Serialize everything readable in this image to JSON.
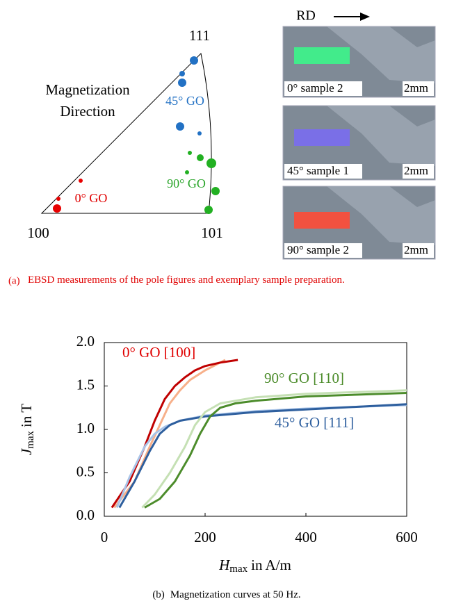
{
  "figure_a": {
    "triangle_labels": {
      "top": "111",
      "left": "100",
      "right": "101"
    },
    "direction_title": [
      "Magnetization",
      "Direction"
    ],
    "group_labels": {
      "deg45": "45° GO",
      "deg90": "90° GO",
      "deg0": "0° GO"
    },
    "rd_label": "RD",
    "panels": [
      {
        "label": "0° sample 2",
        "scale": "2mm"
      },
      {
        "label": "45° sample 1",
        "scale": "2mm"
      },
      {
        "label": "90° sample 2",
        "scale": "2mm"
      }
    ],
    "caption": {
      "label": "(a)",
      "text": "EBSD measurements of the pole figures and exemplary sample preparation."
    }
  },
  "chart_data": {
    "type": "line",
    "y_label": {
      "symbol": "J",
      "subscript": "max",
      "text": "in T"
    },
    "x_label": {
      "symbol": "H",
      "subscript": "max",
      "text": "in A/m"
    },
    "xlim": [
      0,
      600
    ],
    "xticks": [
      0,
      200,
      400,
      600
    ],
    "ylim": [
      0,
      2.0
    ],
    "yticks": [
      {
        "value": 0,
        "label": "0.0"
      },
      {
        "value": 0.5,
        "label": "0.5"
      },
      {
        "value": 1,
        "label": "1.0"
      },
      {
        "value": 1.5,
        "label": "1.5"
      },
      {
        "value": 2,
        "label": "2.0"
      }
    ],
    "annotations": [
      {
        "text": "0° GO  [100]",
        "color": "#e00000"
      },
      {
        "text": "90° GO [110]",
        "color": "#4c8c2b"
      },
      {
        "text": "45° GO [111]",
        "color": "#2e5f9e"
      }
    ],
    "series": [
      {
        "color": "#f7b08a",
        "x": [
          20,
          60,
          90,
          110,
          130,
          150,
          170,
          200,
          240
        ],
        "values": [
          0.1,
          0.4,
          0.8,
          1.05,
          1.3,
          1.45,
          1.57,
          1.68,
          1.8
        ]
      },
      {
        "color": "#c00000",
        "x": [
          15,
          50,
          80,
          100,
          120,
          140,
          160,
          180,
          200,
          230,
          265
        ],
        "values": [
          0.1,
          0.4,
          0.8,
          1.1,
          1.35,
          1.5,
          1.6,
          1.68,
          1.73,
          1.77,
          1.8
        ]
      },
      {
        "color": "#a9c4e8",
        "x": [
          25,
          50,
          80,
          100,
          120,
          150,
          200,
          300,
          400,
          600
        ],
        "values": [
          0.1,
          0.45,
          0.8,
          0.95,
          1.03,
          1.1,
          1.16,
          1.21,
          1.24,
          1.28
        ]
      },
      {
        "color": "#2e5f9e",
        "x": [
          30,
          60,
          90,
          110,
          130,
          150,
          200,
          300,
          400,
          500,
          600
        ],
        "values": [
          0.1,
          0.4,
          0.75,
          0.95,
          1.05,
          1.1,
          1.15,
          1.2,
          1.23,
          1.26,
          1.29
        ]
      },
      {
        "color": "#c5e0b4",
        "x": [
          75,
          100,
          130,
          160,
          180,
          200,
          230,
          300,
          400,
          600
        ],
        "values": [
          0.1,
          0.25,
          0.5,
          0.8,
          1.05,
          1.2,
          1.3,
          1.37,
          1.41,
          1.45
        ]
      },
      {
        "color": "#4c8c2b",
        "x": [
          80,
          110,
          140,
          170,
          190,
          210,
          230,
          260,
          300,
          400,
          500,
          600
        ],
        "values": [
          0.1,
          0.2,
          0.4,
          0.7,
          0.95,
          1.15,
          1.25,
          1.3,
          1.33,
          1.38,
          1.4,
          1.42
        ]
      }
    ]
  },
  "caption_b": {
    "label": "(b)",
    "text": "Magnetization curves at 50 Hz."
  }
}
